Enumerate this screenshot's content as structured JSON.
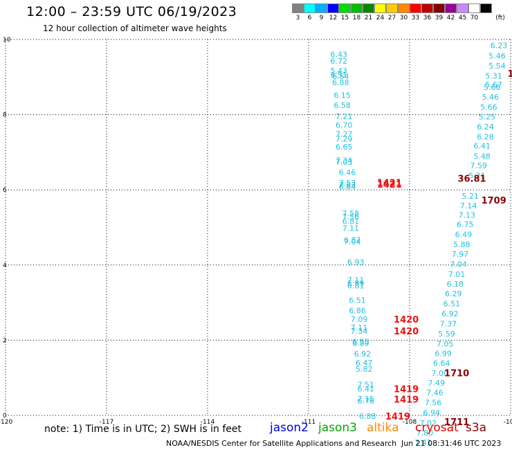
{
  "header": {
    "title": "12:00 – 23:59 UTC 06/19/2023",
    "subtitle": "12 hour collection of altimeter wave heights"
  },
  "legend": {
    "unit": "(ft)",
    "items": [
      {
        "label": "3",
        "color": "#808080"
      },
      {
        "label": "6",
        "color": "#00ffff"
      },
      {
        "label": "9",
        "color": "#00b0ff"
      },
      {
        "label": "12",
        "color": "#0000ff"
      },
      {
        "label": "15",
        "color": "#00dd00"
      },
      {
        "label": "18",
        "color": "#00bb00"
      },
      {
        "label": "21",
        "color": "#008800"
      },
      {
        "label": "24",
        "color": "#ffff00"
      },
      {
        "label": "27",
        "color": "#ffcc00"
      },
      {
        "label": "30",
        "color": "#ff8800"
      },
      {
        "label": "33",
        "color": "#ff0000"
      },
      {
        "label": "36",
        "color": "#bb0000"
      },
      {
        "label": "39",
        "color": "#800000"
      },
      {
        "label": "42",
        "color": "#990099"
      },
      {
        "label": "45",
        "color": "#cc88ff"
      },
      {
        "label": "70",
        "color": "#ffffff"
      },
      {
        "label": "",
        "color": "#000000"
      }
    ]
  },
  "chart_data": {
    "type": "scatter",
    "xlim": [
      -120,
      -105
    ],
    "ylim": [
      0,
      10
    ],
    "x_ticks": [
      -120,
      -117,
      -114,
      -111,
      -108,
      -105
    ],
    "x_tick_labels": [
      "-120",
      "-117",
      "-114",
      "-111",
      "-108",
      "-105"
    ],
    "y_ticks": [
      0,
      2,
      4,
      6,
      8,
      10
    ],
    "y_tick_labels": [
      "0",
      "2",
      "4",
      "6",
      "8",
      "10"
    ],
    "grid": true,
    "wave_color": "#22c0e0",
    "time_color_red": "#ee1111",
    "time_color_dark": "#8b0000",
    "wave_labels": [
      {
        "x": -110.1,
        "y": 9.6,
        "label": "6.43"
      },
      {
        "x": -110.1,
        "y": 9.43,
        "label": "6.72"
      },
      {
        "x": -110.1,
        "y": 9.17,
        "label": "5.43"
      },
      {
        "x": -110.1,
        "y": 9.06,
        "label": "6.51"
      },
      {
        "x": -110.05,
        "y": 9.02,
        "label": "6.54"
      },
      {
        "x": -110.05,
        "y": 8.86,
        "label": "6.88"
      },
      {
        "x": -110.0,
        "y": 8.52,
        "label": "6.15"
      },
      {
        "x": -110.0,
        "y": 8.25,
        "label": "6.58"
      },
      {
        "x": -109.95,
        "y": 7.96,
        "label": "7.21"
      },
      {
        "x": -109.95,
        "y": 7.73,
        "label": "6.70"
      },
      {
        "x": -109.95,
        "y": 7.49,
        "label": "7.27"
      },
      {
        "x": -109.95,
        "y": 7.36,
        "label": "7.29"
      },
      {
        "x": -109.95,
        "y": 7.15,
        "label": "6.65"
      },
      {
        "x": -109.95,
        "y": 6.79,
        "label": "7.34"
      },
      {
        "x": -109.95,
        "y": 6.74,
        "label": "7.03"
      },
      {
        "x": -109.85,
        "y": 6.46,
        "label": "6.46"
      },
      {
        "x": -109.85,
        "y": 6.19,
        "label": "7.53"
      },
      {
        "x": -109.85,
        "y": 6.13,
        "label": "7.03"
      },
      {
        "x": -109.85,
        "y": 6.09,
        "label": "6.64"
      },
      {
        "x": -109.75,
        "y": 5.38,
        "label": "7.58"
      },
      {
        "x": -109.75,
        "y": 5.29,
        "label": "7.56"
      },
      {
        "x": -109.75,
        "y": 5.17,
        "label": "6.81"
      },
      {
        "x": -109.75,
        "y": 4.98,
        "label": "7.11"
      },
      {
        "x": -109.7,
        "y": 4.67,
        "label": "6.87"
      },
      {
        "x": -109.7,
        "y": 4.62,
        "label": "7.04"
      },
      {
        "x": -109.6,
        "y": 4.08,
        "label": "6.93"
      },
      {
        "x": -109.6,
        "y": 3.6,
        "label": "7.11"
      },
      {
        "x": -109.6,
        "y": 3.52,
        "label": "6.99"
      },
      {
        "x": -109.6,
        "y": 3.45,
        "label": "6.81"
      },
      {
        "x": -109.55,
        "y": 3.07,
        "label": "6.51"
      },
      {
        "x": -109.55,
        "y": 2.79,
        "label": "6.86"
      },
      {
        "x": -109.5,
        "y": 2.56,
        "label": "7.09"
      },
      {
        "x": -109.5,
        "y": 2.34,
        "label": "7.11"
      },
      {
        "x": -109.5,
        "y": 2.25,
        "label": "7.34"
      },
      {
        "x": -109.45,
        "y": 1.96,
        "label": "6.55"
      },
      {
        "x": -109.45,
        "y": 1.92,
        "label": "6.89"
      },
      {
        "x": -109.4,
        "y": 1.64,
        "label": "6.92"
      },
      {
        "x": -109.35,
        "y": 1.4,
        "label": "6.47"
      },
      {
        "x": -109.35,
        "y": 1.23,
        "label": "5.82"
      },
      {
        "x": -109.3,
        "y": 0.82,
        "label": "7.51"
      },
      {
        "x": -109.3,
        "y": 0.71,
        "label": "6.41"
      },
      {
        "x": -109.3,
        "y": 0.44,
        "label": "7.15"
      },
      {
        "x": -109.3,
        "y": 0.39,
        "label": "6.76"
      },
      {
        "x": -109.25,
        "y": -0.02,
        "label": "6.88"
      },
      {
        "x": -105.35,
        "y": 9.84,
        "label": "6.23"
      },
      {
        "x": -105.4,
        "y": 9.57,
        "label": "5.46"
      },
      {
        "x": -105.4,
        "y": 9.3,
        "label": "5.54"
      },
      {
        "x": -105.5,
        "y": 9.03,
        "label": "5.31"
      },
      {
        "x": -105.5,
        "y": 8.8,
        "label": "5.67"
      },
      {
        "x": -105.55,
        "y": 8.73,
        "label": "5.66"
      },
      {
        "x": -105.6,
        "y": 8.47,
        "label": "5.46"
      },
      {
        "x": -105.65,
        "y": 8.2,
        "label": "5.66"
      },
      {
        "x": -105.7,
        "y": 7.95,
        "label": "5.25"
      },
      {
        "x": -105.75,
        "y": 7.68,
        "label": "6.24"
      },
      {
        "x": -105.75,
        "y": 7.41,
        "label": "6.28"
      },
      {
        "x": -105.85,
        "y": 7.17,
        "label": "6.41"
      },
      {
        "x": -105.85,
        "y": 6.9,
        "label": "5.48"
      },
      {
        "x": -105.95,
        "y": 6.65,
        "label": "7.59"
      },
      {
        "x": -106.0,
        "y": 6.38,
        "label": "5.21"
      },
      {
        "x": -106.2,
        "y": 5.84,
        "label": "5.21"
      },
      {
        "x": -106.25,
        "y": 5.58,
        "label": "7.14"
      },
      {
        "x": -106.3,
        "y": 5.33,
        "label": "7.13"
      },
      {
        "x": -106.35,
        "y": 5.08,
        "label": "6.75"
      },
      {
        "x": -106.4,
        "y": 4.82,
        "label": "6.49"
      },
      {
        "x": -106.45,
        "y": 4.55,
        "label": "5.88"
      },
      {
        "x": -106.5,
        "y": 4.29,
        "label": "7.97"
      },
      {
        "x": -106.55,
        "y": 4.02,
        "label": "7.04"
      },
      {
        "x": -106.6,
        "y": 3.76,
        "label": "7.01"
      },
      {
        "x": -106.65,
        "y": 3.5,
        "label": "6.18"
      },
      {
        "x": -106.7,
        "y": 3.24,
        "label": "6.29"
      },
      {
        "x": -106.75,
        "y": 2.97,
        "label": "6.51"
      },
      {
        "x": -106.8,
        "y": 2.71,
        "label": "6.92"
      },
      {
        "x": -106.85,
        "y": 2.44,
        "label": "7.37"
      },
      {
        "x": -106.9,
        "y": 2.17,
        "label": "5.59"
      },
      {
        "x": -106.95,
        "y": 1.91,
        "label": "7.05"
      },
      {
        "x": -107.0,
        "y": 1.65,
        "label": "6.99"
      },
      {
        "x": -107.05,
        "y": 1.39,
        "label": "6.64"
      },
      {
        "x": -107.1,
        "y": 1.12,
        "label": "7.00"
      },
      {
        "x": -107.2,
        "y": 0.87,
        "label": "7.49"
      },
      {
        "x": -107.25,
        "y": 0.61,
        "label": "7.46"
      },
      {
        "x": -107.3,
        "y": 0.34,
        "label": "7.56"
      },
      {
        "x": -107.35,
        "y": 0.07,
        "label": "6.94"
      },
      {
        "x": -107.45,
        "y": -0.2,
        "label": "7.02"
      },
      {
        "x": -107.55,
        "y": -0.46,
        "label": "7.80"
      },
      {
        "x": -107.6,
        "y": -0.72,
        "label": "7.41"
      },
      {
        "x": -107.65,
        "y": -0.99,
        "label": "7.94"
      }
    ],
    "time_labels": [
      {
        "x": -108.6,
        "y": 6.2,
        "label": "1421",
        "shade": "red"
      },
      {
        "x": -108.6,
        "y": 6.15,
        "label": "1421",
        "shade": "red"
      },
      {
        "x": -106.15,
        "y": 6.31,
        "label": "36.81",
        "shade": "dark"
      },
      {
        "x": -105.0,
        "y": 9.1,
        "label": "1",
        "shade": "dark"
      },
      {
        "x": -105.5,
        "y": 5.73,
        "label": "1709",
        "shade": "dark"
      },
      {
        "x": -108.1,
        "y": 2.56,
        "label": "1420",
        "shade": "red"
      },
      {
        "x": -108.1,
        "y": 2.25,
        "label": "1420",
        "shade": "red"
      },
      {
        "x": -106.6,
        "y": 1.13,
        "label": "1710",
        "shade": "dark"
      },
      {
        "x": -108.1,
        "y": 0.71,
        "label": "1419",
        "shade": "red"
      },
      {
        "x": -108.1,
        "y": 0.43,
        "label": "1419",
        "shade": "red"
      },
      {
        "x": -108.35,
        "y": -0.02,
        "label": "1419",
        "shade": "red"
      },
      {
        "x": -106.6,
        "y": -0.17,
        "label": "1711",
        "shade": "dark"
      }
    ]
  },
  "footer": {
    "note": "note:  1) Time is in UTC; 2) SWH is in feet",
    "missions": [
      {
        "name": "jason2",
        "color": "#0000dd"
      },
      {
        "name": "jason3",
        "color": "#00aa00"
      },
      {
        "name": "altika",
        "color": "#ff8800"
      },
      {
        "name": "cryosat",
        "color": "#dd0000"
      },
      {
        "name": "s3a",
        "color": "#8b0000"
      }
    ],
    "credit": "NOAA/NESDIS Center for Satellite Applications and Research",
    "timestamp": "Jun 21 08:31:46 UTC 2023"
  }
}
